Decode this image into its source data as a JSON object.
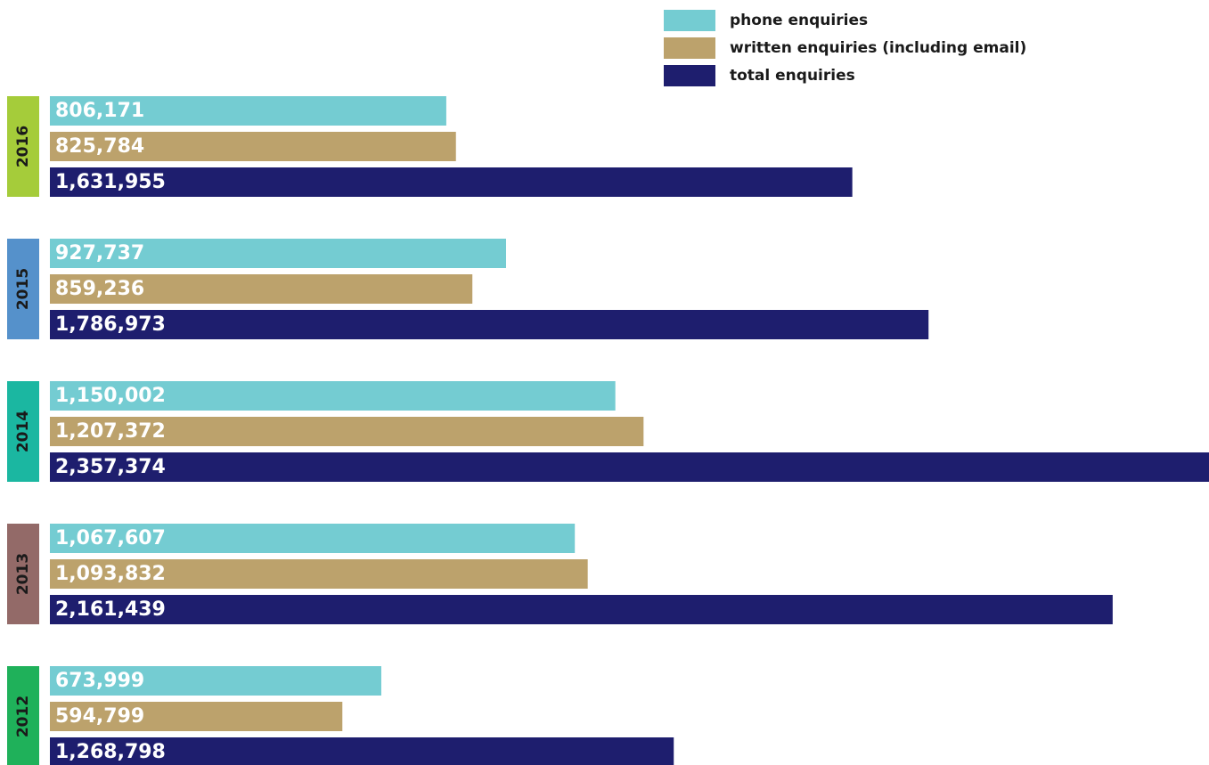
{
  "chart_data": {
    "type": "bar",
    "orientation": "horizontal",
    "title": "",
    "xlabel": "",
    "ylabel": "",
    "xlim": [
      0,
      2357374
    ],
    "grid": false,
    "legend_position": "top-right",
    "colors": {
      "phone enquiries": "#74ccd2",
      "written enquiries (including email)": "#bca26c",
      "total enquiries": "#1e1e6e"
    },
    "series_names": [
      "phone enquiries",
      "written enquiries (including email)",
      "total enquiries"
    ],
    "groups": [
      {
        "year": "2016",
        "year_color": "#a5cc3a",
        "values": [
          806171,
          825784,
          1631955
        ],
        "labels": [
          "806,171",
          "825,784",
          "1,631,955"
        ]
      },
      {
        "year": "2015",
        "year_color": "#5591cb",
        "values": [
          927737,
          859236,
          1786973
        ],
        "labels": [
          "927,737",
          "859,236",
          "1,786,973"
        ]
      },
      {
        "year": "2014",
        "year_color": "#1bb7a1",
        "values": [
          1150002,
          1207372,
          2357374
        ],
        "labels": [
          "1,150,002",
          "1,207,372",
          "2,357,374"
        ]
      },
      {
        "year": "2013",
        "year_color": "#936a68",
        "values": [
          1067607,
          1093832,
          2161439
        ],
        "labels": [
          "1,067,607",
          "1,093,832",
          "2,161,439"
        ]
      },
      {
        "year": "2012",
        "year_color": "#1fb15a",
        "values": [
          673999,
          594799,
          1268798
        ],
        "labels": [
          "673,999",
          "594,799",
          "1,268,798"
        ]
      }
    ]
  }
}
